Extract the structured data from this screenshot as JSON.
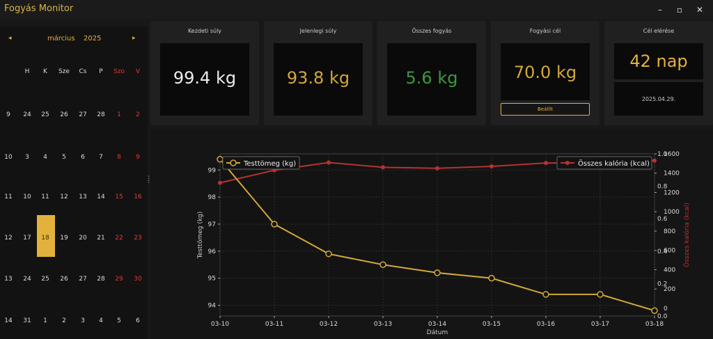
{
  "window": {
    "title": "Fogyás Monitor",
    "minimize": "–",
    "maximize": "▫",
    "close": "✕"
  },
  "calendar": {
    "prev": "◂",
    "next": "▸",
    "month": "március",
    "year": "2025",
    "weekdays": [
      "H",
      "K",
      "Sze",
      "Cs",
      "P",
      "Szo",
      "V"
    ],
    "weeks": [
      {
        "week": "9",
        "days": [
          "24",
          "25",
          "26",
          "27",
          "28",
          "1",
          "2"
        ]
      },
      {
        "week": "10",
        "days": [
          "3",
          "4",
          "5",
          "6",
          "7",
          "8",
          "9"
        ]
      },
      {
        "week": "11",
        "days": [
          "10",
          "11",
          "12",
          "13",
          "14",
          "15",
          "16"
        ]
      },
      {
        "week": "12",
        "days": [
          "17",
          "18",
          "19",
          "20",
          "21",
          "22",
          "23"
        ]
      },
      {
        "week": "13",
        "days": [
          "24",
          "25",
          "26",
          "27",
          "28",
          "29",
          "30"
        ]
      },
      {
        "week": "14",
        "days": [
          "31",
          "1",
          "2",
          "3",
          "4",
          "5",
          "6"
        ]
      }
    ],
    "selected": "18",
    "weekend_color": "#e03a3a",
    "accent_color": "#e3b23c"
  },
  "cards": {
    "start_weight": {
      "label": "Kezdeti súly",
      "value": "99.4 kg",
      "color": "#ececec"
    },
    "current_weight": {
      "label": "Jelenlegi súly",
      "value": "93.8 kg",
      "color": "#d4a838"
    },
    "total_loss": {
      "label": "Összes fogyás",
      "value": "5.6 kg",
      "color": "#3a9a3a"
    },
    "goal": {
      "label": "Fogyási cél",
      "value": "70.0 kg",
      "color": "#d4a838",
      "button": "Beállít"
    },
    "reach": {
      "label": "Cél elérése",
      "value": "42 nap",
      "date": "2025.04.29.",
      "color": "#e3b23c"
    }
  },
  "chart_data": {
    "type": "line",
    "x": [
      "03-10",
      "03-11",
      "03-12",
      "03-13",
      "03-14",
      "03-15",
      "03-16",
      "03-17",
      "03-18"
    ],
    "xlabel": "Dátum",
    "series": [
      {
        "name": "Testtömeg (kg)",
        "values": [
          99.4,
          97.0,
          95.9,
          95.5,
          95.2,
          95.0,
          94.4,
          94.4,
          93.8
        ],
        "color": "#d4a838",
        "axis": "left"
      },
      {
        "name": "Összes kalória (kcal)",
        "values": [
          1300,
          1430,
          1510,
          1460,
          1450,
          1470,
          1505,
          1500,
          1530
        ],
        "color": "#b83232",
        "axis": "right"
      }
    ],
    "ylabel_left": "Testtömeg (kg)",
    "ylabel_right": "Összes kalória (kcal)",
    "ylim_left": [
      93.6,
      99.6
    ],
    "yticks_left": [
      "94",
      "95",
      "96",
      "97",
      "98",
      "99"
    ],
    "ylim_right": [
      -80,
      1600
    ],
    "yticks_right": [
      "0",
      "200",
      "400",
      "600",
      "800",
      "1000",
      "1200",
      "1400",
      "1600"
    ],
    "ylim_right2": [
      0.0,
      1.0
    ],
    "yticks_right2": [
      "0.0",
      "0.2",
      "0.4",
      "0.6",
      "0.8",
      "1.0"
    ],
    "grid": true,
    "legend_left": "top-left",
    "legend_right": "top-right"
  }
}
